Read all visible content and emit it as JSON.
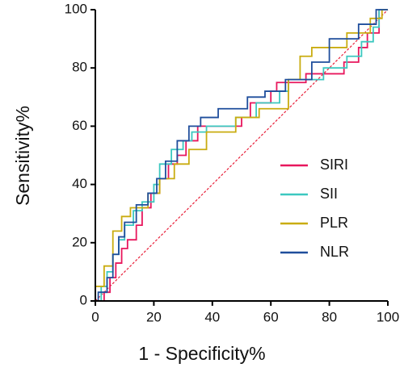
{
  "chart_data": {
    "type": "line",
    "x_label": "1 - Specificity%",
    "y_label": "Sensitivity%",
    "xlim": [
      0,
      100
    ],
    "ylim": [
      0,
      100
    ],
    "xticks": [
      0,
      20,
      40,
      60,
      80,
      100
    ],
    "yticks": [
      0,
      20,
      40,
      60,
      80,
      100
    ],
    "reference_line": {
      "x": [
        0,
        100
      ],
      "values": [
        0,
        100
      ],
      "color": "#e8203a"
    },
    "series": [
      {
        "name": "SIRI",
        "color": "#e8175d",
        "x": [
          0,
          3,
          3,
          5,
          5,
          7,
          7,
          9,
          9,
          11,
          11,
          14,
          14,
          16,
          16,
          19,
          19,
          22,
          22,
          25,
          25,
          28,
          28,
          31,
          31,
          35,
          35,
          50,
          50,
          53,
          53,
          60,
          60,
          62,
          62,
          72,
          72,
          85,
          85,
          90,
          90,
          93,
          93,
          97,
          97,
          100
        ],
        "values": [
          0,
          0,
          3,
          3,
          8,
          8,
          13,
          13,
          18,
          18,
          21,
          21,
          26,
          26,
          32,
          32,
          37,
          37,
          42,
          42,
          47,
          47,
          50,
          50,
          55,
          55,
          60,
          60,
          63,
          63,
          68,
          68,
          72,
          72,
          75,
          75,
          78,
          78,
          82,
          82,
          87,
          87,
          92,
          92,
          100,
          100
        ]
      },
      {
        "name": "SII",
        "color": "#3cc8c0",
        "x": [
          0,
          2,
          2,
          4,
          4,
          6,
          6,
          8,
          8,
          10,
          10,
          13,
          13,
          16,
          16,
          20,
          20,
          22,
          22,
          26,
          26,
          30,
          30,
          33,
          33,
          38,
          38,
          48,
          48,
          55,
          55,
          63,
          63,
          66,
          66,
          78,
          78,
          86,
          86,
          91,
          91,
          95,
          95,
          97,
          97,
          100
        ],
        "values": [
          0,
          0,
          5,
          5,
          10,
          10,
          16,
          16,
          21,
          21,
          26,
          26,
          31,
          31,
          34,
          34,
          40,
          40,
          47,
          47,
          52,
          52,
          55,
          55,
          58,
          58,
          60,
          60,
          63,
          63,
          68,
          68,
          72,
          72,
          76,
          76,
          80,
          80,
          84,
          84,
          89,
          89,
          94,
          94,
          100,
          100
        ]
      },
      {
        "name": "PLR",
        "color": "#c9ac10",
        "x": [
          0,
          0,
          3,
          3,
          6,
          6,
          9,
          9,
          12,
          12,
          18,
          18,
          22,
          22,
          27,
          27,
          32,
          32,
          38,
          38,
          48,
          48,
          56,
          56,
          66,
          66,
          70,
          70,
          74,
          74,
          86,
          86,
          94,
          94,
          98,
          98,
          100
        ],
        "values": [
          0,
          5,
          5,
          12,
          12,
          24,
          24,
          29,
          29,
          32,
          32,
          37,
          37,
          42,
          42,
          47,
          47,
          52,
          52,
          58,
          58,
          63,
          63,
          66,
          66,
          76,
          76,
          84,
          84,
          87,
          87,
          92,
          92,
          97,
          97,
          100,
          100
        ]
      },
      {
        "name": "NLR",
        "color": "#1f4e9c",
        "x": [
          0,
          1,
          1,
          4,
          4,
          6,
          6,
          8,
          8,
          10,
          10,
          14,
          14,
          18,
          18,
          21,
          21,
          24,
          24,
          28,
          28,
          32,
          32,
          36,
          36,
          42,
          42,
          52,
          52,
          58,
          58,
          65,
          65,
          74,
          74,
          80,
          80,
          90,
          90,
          96,
          96,
          100
        ],
        "values": [
          0,
          0,
          3,
          3,
          8,
          8,
          16,
          16,
          22,
          22,
          27,
          27,
          33,
          33,
          37,
          37,
          42,
          42,
          48,
          48,
          55,
          55,
          60,
          60,
          63,
          63,
          66,
          66,
          70,
          70,
          72,
          72,
          76,
          76,
          82,
          82,
          90,
          90,
          95,
          95,
          100,
          100
        ]
      }
    ]
  }
}
